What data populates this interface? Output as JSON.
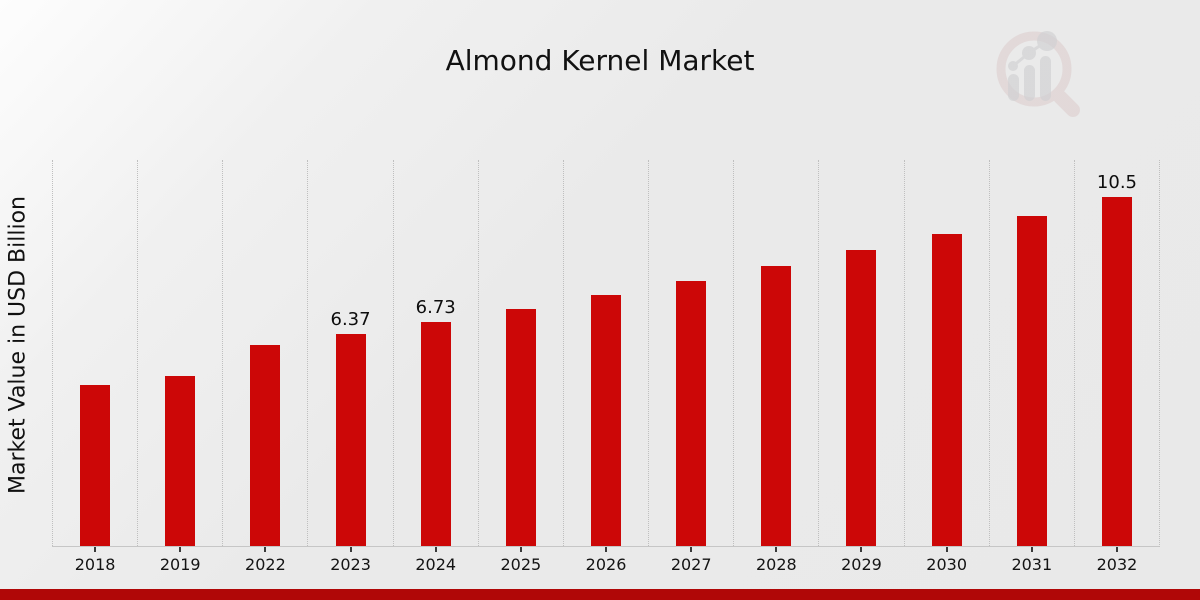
{
  "title": "Almond Kernel Market",
  "watermark_icon": "magnifier-bar-chart-logo",
  "theme": {
    "bar_color": "#cc0707",
    "footer_color": "#b00707",
    "gridline_color": "#bfbfbf",
    "axis_line_color": "#c6c6c6",
    "background_start": "#fdfdfd",
    "background_end": "#e9e9e9",
    "text_color": "#111111",
    "logo_ring_color": "#c9a2a2",
    "logo_bar_color": "#b9b9bd"
  },
  "chart_data": {
    "type": "bar",
    "title": "Almond Kernel Market",
    "xlabel": "",
    "ylabel": "Market Value in USD Billion",
    "ylim": [
      0,
      11.6
    ],
    "grid": "vertical-dotted",
    "legend": "none",
    "categories": [
      "2018",
      "2019",
      "2022",
      "2023",
      "2024",
      "2025",
      "2026",
      "2027",
      "2028",
      "2029",
      "2030",
      "2031",
      "2032"
    ],
    "values": [
      4.85,
      5.12,
      6.03,
      6.37,
      6.73,
      7.12,
      7.53,
      7.96,
      8.43,
      8.9,
      9.38,
      9.92,
      10.5
    ],
    "data_labels": {
      "2023": "6.37",
      "2024": "6.73",
      "2032": "10.5"
    },
    "bar_color": "#cc0707"
  }
}
